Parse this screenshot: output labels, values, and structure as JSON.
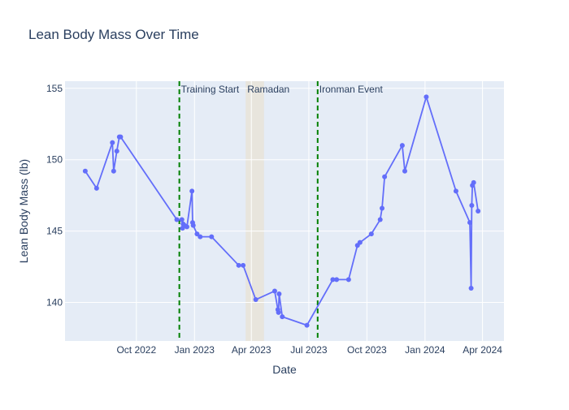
{
  "chart_data": {
    "type": "line",
    "title": "Lean Body Mass Over Time",
    "xlabel": "Date",
    "ylabel": "Lean Body Mass (lb)",
    "x_range": [
      "2022-06-10",
      "2024-05-05"
    ],
    "ylim": [
      137.3,
      155.5
    ],
    "x_ticks": [
      {
        "date": "2022-10-01",
        "label": "Oct 2022"
      },
      {
        "date": "2023-01-01",
        "label": "Jan 2023"
      },
      {
        "date": "2023-04-01",
        "label": "Apr 2023"
      },
      {
        "date": "2023-07-01",
        "label": "Jul 2023"
      },
      {
        "date": "2023-10-01",
        "label": "Oct 2023"
      },
      {
        "date": "2024-01-01",
        "label": "Jan 2024"
      },
      {
        "date": "2024-04-01",
        "label": "Apr 2024"
      }
    ],
    "y_ticks": [
      140,
      145,
      150,
      155
    ],
    "grid": true,
    "colors": {
      "line": "#636efa",
      "marker": "#636efa",
      "plot_bg": "#e5ecf6",
      "grid": "#ffffff",
      "vline": "#008000",
      "shade": "#e8e4da",
      "text": "#2a3f5f"
    },
    "series": [
      {
        "x": [
          "2022-07-12",
          "2022-07-30",
          "2022-08-24",
          "2022-08-26",
          "2022-08-31",
          "2022-09-04",
          "2022-09-06",
          "2022-12-04",
          "2022-12-12",
          "2022-12-13",
          "2022-12-14",
          "2022-12-16",
          "2022-12-20",
          "2022-12-28",
          "2022-12-29",
          "2022-12-30",
          "2023-01-05",
          "2023-01-10",
          "2023-01-28",
          "2023-03-12",
          "2023-03-19",
          "2023-04-08",
          "2023-05-08",
          "2023-05-13",
          "2023-05-14",
          "2023-05-15",
          "2023-05-20",
          "2023-06-28",
          "2023-08-08",
          "2023-08-14",
          "2023-09-02",
          "2023-09-16",
          "2023-09-20",
          "2023-10-08",
          "2023-10-22",
          "2023-10-25",
          "2023-10-29",
          "2023-11-26",
          "2023-11-30",
          "2024-01-03",
          "2024-02-19",
          "2024-03-12",
          "2024-03-14",
          "2024-03-15",
          "2024-03-16",
          "2024-03-18",
          "2024-03-25"
        ],
        "y": [
          149.2,
          148.0,
          151.2,
          149.2,
          150.6,
          151.6,
          151.6,
          145.8,
          145.8,
          145.2,
          145.5,
          145.4,
          145.3,
          147.8,
          145.6,
          145.4,
          144.8,
          144.6,
          144.6,
          142.6,
          142.6,
          140.2,
          140.8,
          139.5,
          139.3,
          140.6,
          139.0,
          138.4,
          141.6,
          141.6,
          141.6,
          144.0,
          144.2,
          144.8,
          145.8,
          146.6,
          148.8,
          151.0,
          149.2,
          154.4,
          147.8,
          145.6,
          141.0,
          146.8,
          148.2,
          148.4,
          146.4
        ]
      }
    ],
    "annotations": [
      {
        "type": "vline",
        "x": "2022-12-08",
        "label": "Training Start"
      },
      {
        "type": "vrect",
        "x0": "2023-03-23",
        "x1": "2023-04-21",
        "label": "Ramadan"
      },
      {
        "type": "vline",
        "x": "2023-07-15",
        "label": "Ironman Event"
      }
    ]
  }
}
